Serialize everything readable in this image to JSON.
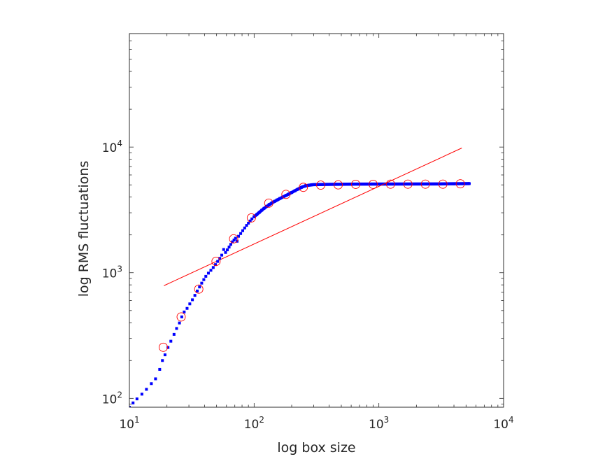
{
  "chart_data": {
    "type": "scatter",
    "title": "",
    "xlabel": "log box size",
    "ylabel": "log RMS fluctuations",
    "xscale": "log",
    "yscale": "log",
    "xlim": [
      10,
      10000
    ],
    "ylim": [
      85,
      80000
    ],
    "grid": false,
    "box": true,
    "x_ticks": [
      {
        "base": "10",
        "exp": "1",
        "value": 10
      },
      {
        "base": "10",
        "exp": "2",
        "value": 100
      },
      {
        "base": "10",
        "exp": "3",
        "value": 1000
      },
      {
        "base": "10",
        "exp": "4",
        "value": 10000
      }
    ],
    "y_ticks": [
      {
        "base": "10",
        "exp": "2",
        "value": 100
      },
      {
        "base": "10",
        "exp": "3",
        "value": 1000
      },
      {
        "base": "10",
        "exp": "4",
        "value": 10000
      }
    ],
    "colors": {
      "axis": "#262626",
      "fluctuation": "#0000ff",
      "fit": "#ff0000"
    },
    "series": [
      {
        "kind": "points",
        "marker": "square",
        "color": "#0000ff",
        "points": [
          [
            10,
            85
          ],
          [
            10.7,
            92
          ],
          [
            11.5,
            99
          ],
          [
            12.6,
            108
          ],
          [
            13.7,
            118
          ],
          [
            15,
            131
          ],
          [
            16.2,
            143
          ],
          [
            17.5,
            170
          ],
          [
            18.4,
            200
          ],
          [
            19.3,
            222
          ],
          [
            20.4,
            254
          ],
          [
            21.5,
            285
          ],
          [
            22.8,
            323
          ],
          [
            23.9,
            360
          ],
          [
            25.2,
            398
          ],
          [
            26.3,
            445
          ],
          [
            27.5,
            487
          ],
          [
            29,
            520
          ],
          [
            30.5,
            565
          ],
          [
            32,
            609
          ],
          [
            33.5,
            660
          ],
          [
            35,
            715
          ],
          [
            36.5,
            770
          ],
          [
            38,
            826
          ],
          [
            39.5,
            881
          ],
          [
            41,
            936
          ],
          [
            43,
            992
          ],
          [
            45,
            1045
          ],
          [
            47,
            1100
          ],
          [
            49,
            1160
          ],
          [
            51,
            1230
          ],
          [
            53,
            1300
          ],
          [
            55,
            1380
          ],
          [
            57,
            1530
          ],
          [
            59,
            1450
          ],
          [
            61,
            1520
          ],
          [
            63,
            1600
          ],
          [
            65,
            1680
          ],
          [
            67,
            1760
          ],
          [
            69,
            1820
          ],
          [
            71,
            1880
          ],
          [
            73,
            1780
          ],
          [
            75,
            1950
          ],
          [
            78,
            2050
          ],
          [
            81,
            2160
          ],
          [
            84,
            2270
          ],
          [
            87,
            2380
          ],
          [
            90,
            2480
          ],
          [
            93,
            2580
          ],
          [
            96,
            2680
          ],
          [
            100,
            2790
          ],
          [
            105,
            2900
          ],
          [
            110,
            3020
          ],
          [
            115,
            3140
          ],
          [
            120,
            3250
          ],
          [
            126,
            3380
          ],
          [
            132,
            3490
          ],
          [
            139,
            3600
          ],
          [
            146,
            3700
          ],
          [
            153,
            3800
          ],
          [
            161,
            3900
          ],
          [
            170,
            4010
          ],
          [
            180,
            4120
          ],
          [
            190,
            4230
          ],
          [
            200,
            4350
          ],
          [
            212,
            4480
          ],
          [
            225,
            4620
          ],
          [
            240,
            4780
          ],
          [
            260,
            4950
          ],
          [
            290,
            5020
          ],
          [
            350,
            5040
          ],
          [
            450,
            5060
          ],
          [
            600,
            5070
          ],
          [
            800,
            5080
          ],
          [
            1000,
            5080
          ],
          [
            1400,
            5080
          ],
          [
            2000,
            5080
          ],
          [
            2800,
            5080
          ],
          [
            4000,
            5100
          ],
          [
            5300,
            5120
          ]
        ]
      },
      {
        "kind": "thick-line",
        "color": "#0000ff",
        "points": [
          [
            100,
            2790
          ],
          [
            120,
            3250
          ],
          [
            140,
            3610
          ],
          [
            160,
            3880
          ],
          [
            180,
            4120
          ],
          [
            200,
            4350
          ],
          [
            220,
            4580
          ],
          [
            245,
            4830
          ],
          [
            270,
            4960
          ],
          [
            300,
            5020
          ],
          [
            400,
            5050
          ],
          [
            700,
            5075
          ],
          [
            1500,
            5080
          ],
          [
            3000,
            5090
          ],
          [
            5300,
            5120
          ]
        ]
      },
      {
        "kind": "circles",
        "marker": "circle",
        "color": "#ff0000",
        "points": [
          [
            18.7,
            255
          ],
          [
            26,
            445
          ],
          [
            36,
            740
          ],
          [
            49.5,
            1230
          ],
          [
            68.5,
            1860
          ],
          [
            95,
            2730
          ],
          [
            131,
            3580
          ],
          [
            180,
            4200
          ],
          [
            248,
            4780
          ],
          [
            342,
            4980
          ],
          [
            472,
            5000
          ],
          [
            652,
            5050
          ],
          [
            900,
            5050
          ],
          [
            1240,
            5070
          ],
          [
            1710,
            5070
          ],
          [
            2360,
            5070
          ],
          [
            3260,
            5070
          ],
          [
            4500,
            5100
          ]
        ]
      },
      {
        "kind": "line",
        "name": "fit",
        "color": "#ff0000",
        "points": [
          [
            19,
            790
          ],
          [
            4600,
            9800
          ]
        ]
      }
    ]
  }
}
